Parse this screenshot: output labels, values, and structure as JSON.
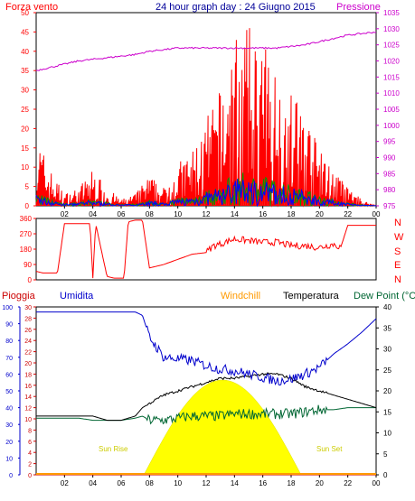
{
  "header": {
    "left_label": "Forza vento",
    "title": "24 hour graph day : 24 Giugno 2015",
    "right_label": "Pressione"
  },
  "wind_panel": {
    "left_axis_ticks": [
      "0",
      "5",
      "10",
      "15",
      "20",
      "25",
      "30",
      "35",
      "40",
      "45",
      "50"
    ],
    "right_axis_ticks": [
      "975",
      "980",
      "985",
      "990",
      "995",
      "1000",
      "1005",
      "1010",
      "1015",
      "1020",
      "1025",
      "1030",
      "1035"
    ],
    "x_ticks": [
      "02",
      "04",
      "06",
      "08",
      "10",
      "12",
      "14",
      "16",
      "18",
      "20",
      "22",
      "00"
    ],
    "colors": {
      "wind_gust": "#ff0000",
      "wind_avg": "#0000ff",
      "wind_speed": "#009900",
      "pressure": "#cc00cc"
    }
  },
  "direction_panel": {
    "left_axis_ticks": [
      "0",
      "90",
      "180",
      "270",
      "360"
    ],
    "compass_labels": [
      "N",
      "W",
      "S",
      "E",
      "N"
    ],
    "color": "#ff0000"
  },
  "weather_panel": {
    "legend": {
      "rain": "Pioggia",
      "humidity": "Umidita",
      "windchill": "Windchill",
      "temperature": "Temperatura",
      "dewpoint": "Dew Point (°C"
    },
    "humidity_ticks": [
      "0",
      "10",
      "20",
      "30",
      "40",
      "50",
      "60",
      "70",
      "80",
      "90",
      "100"
    ],
    "rain_ticks": [
      "0",
      "2",
      "4",
      "6",
      "8",
      "10",
      "12",
      "14",
      "16",
      "18",
      "20",
      "22",
      "24",
      "26",
      "28",
      "30"
    ],
    "temp_ticks": [
      "0",
      "5",
      "10",
      "15",
      "20",
      "25",
      "30",
      "35",
      "40"
    ],
    "x_ticks": [
      "02",
      "04",
      "06",
      "08",
      "10",
      "12",
      "14",
      "16",
      "18",
      "20",
      "22",
      "00"
    ],
    "sun_rise": "Sun Rise",
    "sun_set": "Sun Set",
    "colors": {
      "rain": "#cc0000",
      "humidity": "#0000cc",
      "windchill": "#ff9900",
      "temperature": "#000000",
      "dewpoint": "#006633",
      "sun": "#ffff00"
    }
  },
  "chart_data": [
    {
      "type": "line",
      "title": "24 hour graph day : 24 Giugno 2015",
      "series": [
        {
          "name": "Forza vento",
          "axis": "left",
          "ylim": [
            0,
            50
          ],
          "x": [
            0,
            1,
            2,
            3,
            4,
            5,
            6,
            7,
            8,
            9,
            10,
            11,
            12,
            13,
            14,
            15,
            16,
            17,
            18,
            19,
            20,
            21,
            22,
            23,
            24
          ],
          "values": [
            12,
            6,
            2,
            3,
            6,
            3,
            1,
            2,
            5,
            3,
            7,
            9,
            14,
            19,
            28,
            29,
            27,
            22,
            19,
            16,
            9,
            6,
            3,
            1,
            0
          ]
        },
        {
          "name": "Pressione",
          "axis": "right",
          "ylim": [
            975,
            1035
          ],
          "x": [
            0,
            1,
            2,
            3,
            4,
            5,
            6,
            7,
            8,
            9,
            10,
            11,
            12,
            13,
            14,
            15,
            16,
            17,
            18,
            19,
            20,
            21,
            22,
            23,
            24
          ],
          "values": [
            1017,
            1018,
            1019,
            1020,
            1020.5,
            1021,
            1021.5,
            1022,
            1023,
            1023.5,
            1024,
            1024,
            1024,
            1024,
            1024,
            1024,
            1024,
            1024,
            1024.5,
            1025,
            1026,
            1027,
            1028,
            1028.5,
            1029
          ]
        }
      ]
    },
    {
      "type": "line",
      "title": "",
      "ylim": [
        0,
        360
      ],
      "series": [
        {
          "name": "",
          "x": [
            0,
            0.5,
            1.5,
            2,
            2.5,
            3.5,
            3.8,
            4,
            4.2,
            5,
            5.5,
            6.2,
            6.5,
            7,
            7.5,
            8,
            9,
            10,
            11,
            12,
            12.5,
            13,
            14,
            15,
            16,
            17,
            18,
            19,
            20,
            21,
            21.5,
            22,
            22.5,
            23,
            24
          ],
          "values": [
            50,
            40,
            40,
            330,
            330,
            330,
            330,
            10,
            330,
            20,
            10,
            10,
            340,
            350,
            350,
            70,
            90,
            120,
            150,
            160,
            200,
            210,
            240,
            230,
            220,
            220,
            200,
            200,
            190,
            210,
            190,
            320,
            320,
            320,
            320
          ]
        }
      ]
    },
    {
      "type": "line",
      "title": "",
      "x": [
        0,
        1,
        2,
        3,
        4,
        5,
        6,
        7,
        7.5,
        8,
        9,
        10,
        11,
        12,
        13,
        14,
        15,
        16,
        17,
        18,
        19,
        20,
        21,
        22,
        23,
        24
      ],
      "series": [
        {
          "name": "Umidita",
          "axis": "humidity",
          "ylim": [
            0,
            100
          ],
          "values": [
            97,
            97,
            97,
            97,
            97,
            97,
            97,
            97,
            95,
            82,
            70,
            69,
            68,
            65,
            63,
            62,
            60,
            58,
            56,
            57,
            60,
            64,
            72,
            78,
            85,
            93
          ]
        },
        {
          "name": "Temperatura",
          "axis": "temp",
          "ylim": [
            0,
            40
          ],
          "values": [
            14,
            14,
            14,
            14,
            14,
            13,
            13,
            14,
            16,
            17,
            19,
            20,
            21,
            22,
            23,
            23,
            23.5,
            24,
            24,
            23,
            21,
            20,
            19,
            18,
            17,
            16
          ]
        },
        {
          "name": "Dew Point (°C",
          "axis": "temp",
          "ylim": [
            0,
            40
          ],
          "values": [
            13.5,
            13.5,
            13.5,
            13.5,
            13,
            13,
            13,
            13.5,
            14,
            13,
            13,
            13.5,
            14,
            14,
            14,
            14.5,
            14.5,
            14.5,
            14.5,
            14.5,
            15,
            15.5,
            15.5,
            16,
            16,
            16
          ]
        },
        {
          "name": "Pioggia",
          "axis": "rain",
          "ylim": [
            0,
            30
          ],
          "values": [
            0,
            0,
            0,
            0,
            0,
            0,
            0,
            0,
            0,
            0,
            0,
            0,
            0,
            0,
            0,
            0,
            0,
            0,
            0,
            0,
            0,
            0,
            0,
            0,
            0,
            0
          ]
        }
      ]
    }
  ]
}
